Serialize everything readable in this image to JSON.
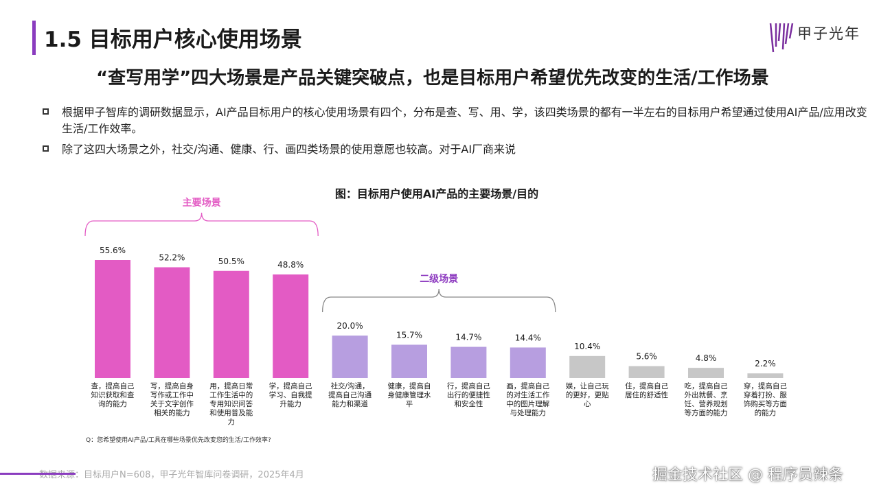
{
  "header": {
    "title": "1.5 目标用户核心使用场景",
    "logo_text": "甲子光年",
    "logo_color": "#7a2e9e"
  },
  "subtitle": "“查写用学”四大场景是产品关键突破点，也是目标用户希望优先改变的生活/工作场景",
  "bullets": [
    "根据甲子智库的调研数据显示，AI产品目标用户的核心使用场景有四个，分布是查、写、用、学，该四类场景的都有一半左右的目标用户希望通过使用AI产品/应用改变生活/工作效率。",
    "除了这四大场景之外，社交/沟通、健康、行、画四类场景的使用意愿也较高。对于AI厂商来说"
  ],
  "chart_data": {
    "type": "bar",
    "title": "图：目标用户使用AI产品的主要场景/目的",
    "categories": [
      "查，提高自己知识获取和查询的能力",
      "写，提高自身写作或工作中关于文字创作相关的能力",
      "用，提高日常工作生活中的专用知识问答和使用普及能力",
      "学，提高自己学习、自我提升能力",
      "社交/沟通，提高自己沟通能力和渠道",
      "健康，提高自身健康管理水平",
      "行，提高自己出行的便捷性和安全性",
      "画，提高自己的对生活工作中的图片理解与处理能力",
      "娱，让自己玩的更好，更贴心",
      "住，提高自己居住的舒适性",
      "吃，提高自己外出就餐、烹饪、营养规划等方面的能力",
      "穿，提高自己穿着打扮、服饰购买等方面的能力"
    ],
    "category_lines": [
      [
        "查，提高自己",
        "知识获取和查",
        "询的能力"
      ],
      [
        "写，提高自身",
        "写作或工作中",
        "关于文字创作",
        "相关的能力"
      ],
      [
        "用，提高日常",
        "工作生活中的",
        "专用知识问答",
        "和使用普及能",
        "力"
      ],
      [
        "学，提高自己",
        "学习、自我提",
        "升能力"
      ],
      [
        "社交/沟通，",
        "提高自己沟通",
        "能力和渠道"
      ],
      [
        "健康，提高自",
        "身健康管理水",
        "平"
      ],
      [
        "行，提高自己",
        "出行的便捷性",
        "和安全性"
      ],
      [
        "画，提高自己",
        "的对生活工作",
        "中的图片理解",
        "与处理能力"
      ],
      [
        "娱，让自己玩",
        "的更好，更贴",
        "心"
      ],
      [
        "住，提高自己",
        "居住的舒适性"
      ],
      [
        "吃，提高自己",
        "外出就餐、烹",
        "饪、营养规划",
        "等方面的能力"
      ],
      [
        "穿，提高自己",
        "穿着打扮、服",
        "饰购买等方面",
        "的能力"
      ]
    ],
    "values": [
      55.6,
      52.2,
      50.5,
      48.8,
      20.0,
      15.7,
      14.7,
      14.4,
      10.4,
      5.6,
      4.8,
      2.2
    ],
    "value_labels": [
      "55.6%",
      "52.2%",
      "50.5%",
      "48.8%",
      "20.0%",
      "15.7%",
      "14.7%",
      "14.4%",
      "10.4%",
      "5.6%",
      "4.8%",
      "2.2%"
    ],
    "groups": [
      {
        "name": "主要场景",
        "start": 0,
        "end": 3,
        "color": "#e35bc4"
      },
      {
        "name": "二级场景",
        "start": 4,
        "end": 7,
        "color": "#8e3cc0"
      }
    ],
    "bar_colors": [
      "#e35bc4",
      "#e35bc4",
      "#e35bc4",
      "#e35bc4",
      "#b79ee0",
      "#b79ee0",
      "#b79ee0",
      "#b79ee0",
      "#c7c7c7",
      "#c7c7c7",
      "#c7c7c7",
      "#c7c7c7"
    ],
    "ylim": [
      0,
      60
    ],
    "grid": false,
    "legend": "none"
  },
  "question": "Q：您希望使用AI产品/工具在哪些场景优先改变您的生活/工作效率?",
  "source": "数据来源：目标用户N=608，甲子光年智库问卷调研，2025年4月",
  "watermark": "掘金技术社区 @ 程序员辣条"
}
